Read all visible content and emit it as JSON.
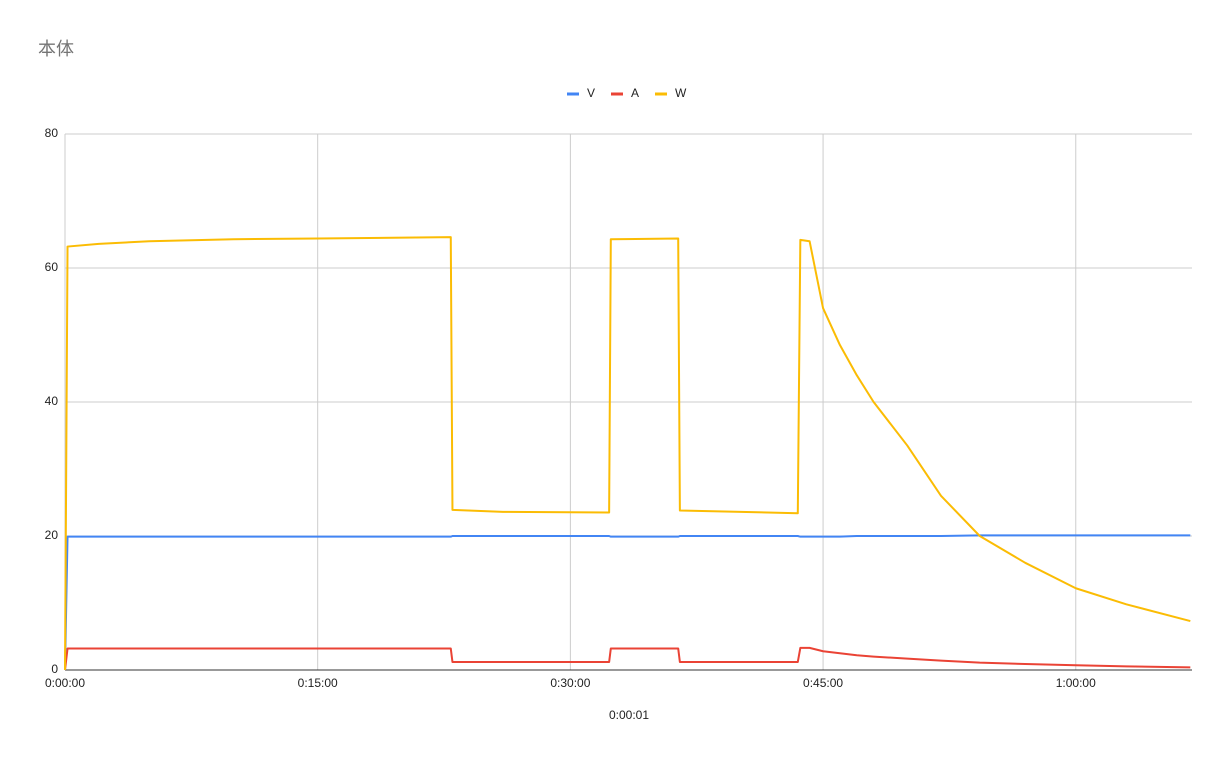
{
  "chart_data": {
    "type": "line",
    "title": "本体",
    "x_label": "0:00:01",
    "x": [
      0,
      0.15,
      2,
      5,
      10,
      15,
      22.9,
      23.0,
      26,
      32.3,
      32.4,
      36.4,
      36.5,
      43.5,
      43.65,
      44.2,
      45,
      46,
      47,
      48,
      50,
      52,
      54.3,
      57,
      60,
      63,
      66.8
    ],
    "series": [
      {
        "name": "V",
        "color": "#4285f4",
        "values": [
          0,
          19.9,
          19.9,
          19.9,
          19.9,
          19.9,
          19.9,
          20.0,
          20.0,
          20.0,
          19.9,
          19.9,
          20.0,
          20.0,
          19.9,
          19.9,
          19.9,
          19.9,
          20.0,
          20.0,
          20.0,
          20.0,
          20.1,
          20.1,
          20.1,
          20.1,
          20.1
        ]
      },
      {
        "name": "A",
        "color": "#ea4335",
        "values": [
          0,
          3.2,
          3.2,
          3.2,
          3.2,
          3.2,
          3.2,
          1.2,
          1.2,
          1.2,
          3.2,
          3.2,
          1.2,
          1.2,
          3.3,
          3.3,
          2.8,
          2.5,
          2.2,
          2.0,
          1.7,
          1.4,
          1.1,
          0.9,
          0.7,
          0.55,
          0.4
        ]
      },
      {
        "name": "W",
        "color": "#fbbc04",
        "values": [
          0,
          63.2,
          63.6,
          64.0,
          64.3,
          64.4,
          64.6,
          23.9,
          23.6,
          23.5,
          64.3,
          64.4,
          23.8,
          23.4,
          64.2,
          64.0,
          54,
          48.5,
          44,
          40,
          33.5,
          26,
          20,
          16,
          12.2,
          9.8,
          7.3
        ]
      }
    ],
    "xlim": [
      0,
      66.9
    ],
    "xticks": [
      {
        "value": 0,
        "label": "0:00:00"
      },
      {
        "value": 15,
        "label": "0:15:00"
      },
      {
        "value": 30,
        "label": "0:30:00"
      },
      {
        "value": 45,
        "label": "0:45:00"
      },
      {
        "value": 60,
        "label": "1:00:00"
      }
    ],
    "ylim": [
      0,
      80
    ],
    "yticks": [
      0,
      20,
      40,
      60,
      80
    ],
    "grid": true,
    "legend": "top"
  }
}
